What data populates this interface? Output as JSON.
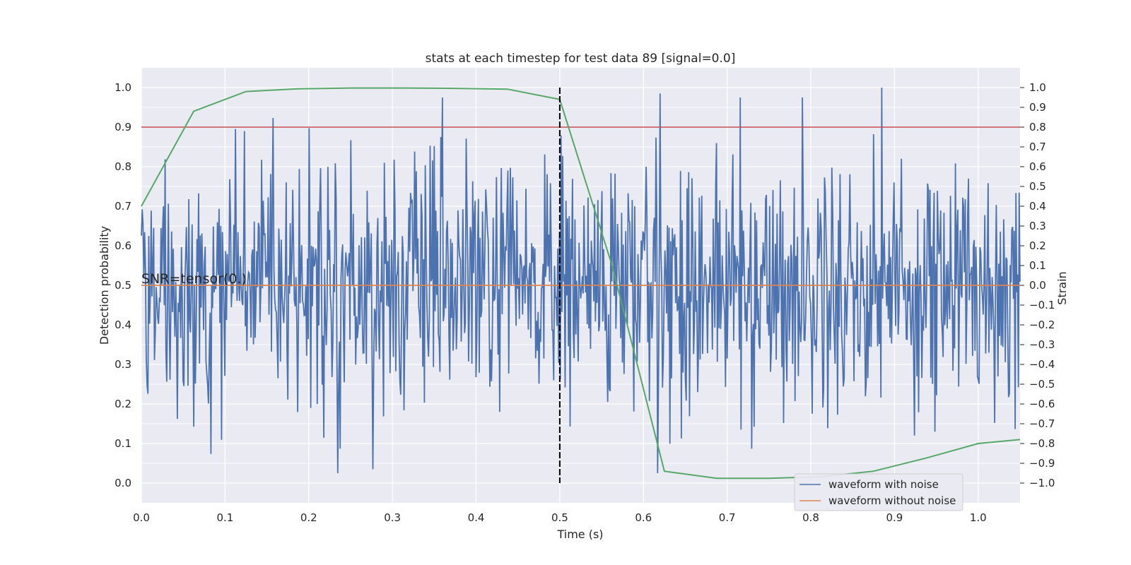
{
  "chart_data": {
    "type": "line",
    "title": "stats at each timestep for test data 89 [signal=0.0]",
    "xlabel": "Time (s)",
    "ylabel_left": "Detection probability",
    "ylabel_right": "Strain",
    "xlim": [
      0.0,
      1.05
    ],
    "ylim_left": [
      -0.05,
      1.05
    ],
    "ylim_right": [
      -1.1,
      1.1
    ],
    "x_ticks": [
      0.0,
      0.1,
      0.2,
      0.3,
      0.4,
      0.5,
      0.6,
      0.7,
      0.8,
      0.9,
      1.0
    ],
    "x_tick_labels": [
      "0.0",
      "0.1",
      "0.2",
      "0.3",
      "0.4",
      "0.5",
      "0.6",
      "0.7",
      "0.8",
      "0.9",
      "1.0"
    ],
    "y_left_ticks": [
      0.0,
      0.1,
      0.2,
      0.3,
      0.4,
      0.5,
      0.6,
      0.7,
      0.8,
      0.9,
      1.0
    ],
    "y_left_tick_labels": [
      "0.0",
      "0.1",
      "0.2",
      "0.3",
      "0.4",
      "0.5",
      "0.6",
      "0.7",
      "0.8",
      "0.9",
      "1.0"
    ],
    "y_right_ticks": [
      1.0,
      0.9,
      0.8,
      0.7,
      0.6,
      0.5,
      0.4,
      0.3,
      0.2,
      0.1,
      0.0,
      -0.1,
      -0.2,
      -0.3,
      -0.4,
      -0.5,
      -0.6,
      -0.7,
      -0.8,
      -0.9,
      -1.0
    ],
    "y_right_tick_labels": [
      "1.0",
      "0.9",
      "0.8",
      "0.7",
      "0.6",
      "0.5",
      "0.4",
      "0.3",
      "0.2",
      "0.1",
      "0.0",
      "−0.1",
      "−0.2",
      "−0.3",
      "−0.4",
      "−0.5",
      "−0.6",
      "−0.7",
      "−0.8",
      "−0.9",
      "−1.0"
    ],
    "grid": true,
    "legend_position": "bottom-right",
    "annotation": "SNR=tensor(0.)",
    "threshold": {
      "value": 0.9,
      "color": "#c44e52"
    },
    "vertical_marker": {
      "x": 0.5,
      "y_from": 0.0,
      "y_to": 1.0,
      "color": "#000000"
    },
    "detection_probability": {
      "color": "#55a868",
      "x": [
        0.0,
        0.0625,
        0.125,
        0.1875,
        0.25,
        0.3125,
        0.375,
        0.4375,
        0.5,
        0.5625,
        0.625,
        0.6875,
        0.75,
        0.8125,
        0.875,
        0.9375,
        1.0,
        1.05
      ],
      "y": [
        0.7,
        0.94,
        0.99,
        0.997,
        0.999,
        0.999,
        0.998,
        0.996,
        0.97,
        0.55,
        0.03,
        0.012,
        0.012,
        0.016,
        0.03,
        0.063,
        0.1,
        0.11
      ]
    },
    "series": [
      {
        "name": "waveform with noise",
        "color": "#4c72b0",
        "n_samples": 1075,
        "noise_amplitude": 0.32,
        "extremes": [
          {
            "x": 0.123,
            "y": 0.78
          },
          {
            "x": 0.277,
            "y": -0.93
          },
          {
            "x": 0.62,
            "y": 0.97
          },
          {
            "x": 0.885,
            "y": 1.0
          }
        ]
      },
      {
        "name": "waveform without noise",
        "color": "#dd8452",
        "value": 0.0
      }
    ]
  }
}
